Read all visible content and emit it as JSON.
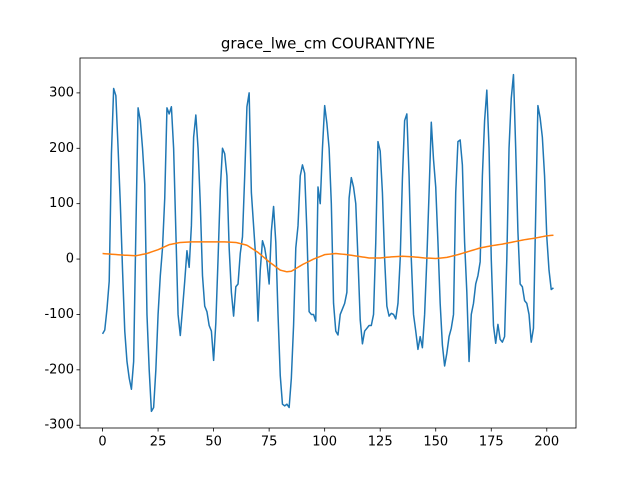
{
  "chart_data": {
    "type": "line",
    "title": "grace_lwe_cm COURANTYNE",
    "x": [
      0,
      1,
      2,
      3,
      4,
      5,
      6,
      7,
      8,
      9,
      10,
      11,
      12,
      13,
      14,
      15,
      16,
      17,
      18,
      19,
      20,
      21,
      22,
      23,
      24,
      25,
      26,
      27,
      28,
      29,
      30,
      31,
      32,
      33,
      34,
      35,
      36,
      37,
      38,
      39,
      40,
      41,
      42,
      43,
      44,
      45,
      46,
      47,
      48,
      49,
      50,
      51,
      52,
      53,
      54,
      55,
      56,
      57,
      58,
      59,
      60,
      61,
      62,
      63,
      64,
      65,
      66,
      67,
      68,
      69,
      70,
      71,
      72,
      73,
      74,
      75,
      76,
      77,
      78,
      79,
      80,
      81,
      82,
      83,
      84,
      85,
      86,
      87,
      88,
      89,
      90,
      91,
      92,
      93,
      94,
      95,
      96,
      97,
      98,
      99,
      100,
      101,
      102,
      103,
      104,
      105,
      106,
      107,
      108,
      109,
      110,
      111,
      112,
      113,
      114,
      115,
      116,
      117,
      118,
      119,
      120,
      121,
      122,
      123,
      124,
      125,
      126,
      127,
      128,
      129,
      130,
      131,
      132,
      133,
      134,
      135,
      136,
      137,
      138,
      139,
      140,
      141,
      142,
      143,
      144,
      145,
      146,
      147,
      148,
      149,
      150,
      151,
      152,
      153,
      154,
      155,
      156,
      157,
      158,
      159,
      160,
      161,
      162,
      163,
      164,
      165,
      166,
      167,
      168,
      169,
      170,
      171,
      172,
      173,
      174,
      175,
      176,
      177,
      178,
      179,
      180,
      181,
      182,
      183,
      184,
      185,
      186,
      187,
      188,
      189,
      190,
      191,
      192,
      193,
      194,
      195,
      196,
      197,
      198,
      199,
      200,
      201,
      202,
      203
    ],
    "series": [
      {
        "color": "#1f77b4",
        "values": [
          -135,
          -128,
          -90,
          -40,
          190,
          308,
          295,
          200,
          100,
          -20,
          -130,
          -185,
          -215,
          -235,
          -185,
          50,
          273,
          250,
          200,
          135,
          -100,
          -200,
          -275,
          -268,
          -200,
          -100,
          -30,
          20,
          110,
          273,
          262,
          275,
          200,
          50,
          -100,
          -138,
          -90,
          -40,
          15,
          -15,
          60,
          220,
          260,
          200,
          100,
          -30,
          -85,
          -95,
          -120,
          -130,
          -183,
          -115,
          0,
          125,
          200,
          190,
          150,
          20,
          -60,
          -103,
          -50,
          -45,
          10,
          40,
          150,
          275,
          300,
          120,
          60,
          0,
          -112,
          -20,
          33,
          20,
          -5,
          -45,
          50,
          95,
          30,
          -100,
          -210,
          -262,
          -265,
          -262,
          -268,
          -215,
          -120,
          20,
          60,
          150,
          170,
          155,
          50,
          -95,
          -100,
          -100,
          -112,
          130,
          100,
          200,
          277,
          245,
          200,
          100,
          -80,
          -130,
          -137,
          -100,
          -90,
          -80,
          -60,
          110,
          147,
          130,
          100,
          0,
          -110,
          -153,
          -130,
          -125,
          -120,
          -120,
          -100,
          30,
          212,
          195,
          120,
          0,
          -85,
          -103,
          -98,
          -100,
          -108,
          -80,
          0,
          145,
          250,
          262,
          150,
          0,
          -100,
          -130,
          -163,
          -140,
          -160,
          -100,
          0,
          120,
          247,
          180,
          130,
          30,
          -80,
          -155,
          -193,
          -170,
          -140,
          -125,
          -100,
          120,
          212,
          215,
          170,
          30,
          -60,
          -185,
          -100,
          -80,
          -45,
          -30,
          -5,
          150,
          250,
          305,
          200,
          0,
          -120,
          -152,
          -118,
          -145,
          -150,
          -140,
          0,
          200,
          290,
          333,
          200,
          50,
          -45,
          -50,
          -75,
          -80,
          -100,
          -150,
          -125,
          80,
          277,
          255,
          220,
          150,
          40,
          -20,
          -55,
          -52
        ]
      },
      {
        "color": "#ff7f0e",
        "values": [
          10,
          9.7,
          9.4,
          9.1,
          8.8,
          8.5,
          8.2,
          7.9,
          7.6,
          7.3,
          7,
          6.8,
          6.6,
          6.4,
          6.2,
          6,
          6.8,
          7.6,
          8.4,
          9.2,
          10,
          11.4,
          12.8,
          14.2,
          15.6,
          17,
          18.8,
          20.6,
          22.4,
          24.2,
          26,
          26.8,
          27.6,
          28.4,
          29.2,
          30,
          30.2,
          30.4,
          30.6,
          30.8,
          31,
          31,
          31,
          31,
          31,
          31,
          31,
          31,
          31,
          31,
          31,
          31,
          31,
          31,
          31,
          31,
          30.8,
          30.6,
          30.4,
          30.2,
          30,
          29,
          28,
          27,
          26,
          25,
          22.4,
          19.8,
          17.2,
          14.6,
          12,
          8.6,
          5.2,
          1.8,
          -1.6,
          -5,
          -8,
          -11,
          -14,
          -17,
          -20,
          -21,
          -22,
          -23,
          -22.5,
          -22,
          -19.6,
          -17.2,
          -14.8,
          -12.4,
          -10,
          -8,
          -6,
          -4,
          -2,
          0,
          1.6,
          3.2,
          4.8,
          6.4,
          8,
          8.4,
          8.8,
          9.2,
          9.6,
          10,
          9.6,
          9.2,
          8.8,
          8.4,
          8,
          7.4,
          6.8,
          6.2,
          5.6,
          5,
          4.4,
          3.8,
          3.2,
          2.6,
          2,
          2,
          2,
          2,
          2,
          2,
          2.4,
          2.8,
          3.2,
          3.6,
          4,
          4.2,
          4.4,
          4.6,
          4.8,
          5,
          4.8,
          4.6,
          4.4,
          4.2,
          4,
          3.6,
          3.2,
          2.8,
          2.4,
          2,
          1.8,
          1.6,
          1.4,
          1.2,
          1,
          1.4,
          1.8,
          2.2,
          2.6,
          3,
          4,
          5,
          6,
          7,
          8,
          9.2,
          10.4,
          11.6,
          12.8,
          14,
          15.2,
          16.4,
          17.6,
          18.8,
          20,
          20.8,
          21.6,
          22.4,
          23.2,
          24,
          24.6,
          25.2,
          25.8,
          26.4,
          27,
          27.8,
          28.6,
          29.4,
          30.2,
          31,
          31.8,
          32.6,
          33.4,
          34.2,
          35,
          35.6,
          36.2,
          36.8,
          37.4,
          38,
          38.8,
          39.6,
          40.4,
          41.2,
          42,
          42.3,
          42.7,
          43
        ]
      }
    ],
    "xlim": [
      -10.15,
      213.15
    ],
    "xticks": [
      0,
      25,
      50,
      75,
      100,
      125,
      150,
      175,
      200
    ],
    "ylim": [
      -305,
      363
    ],
    "yticks": [
      -300,
      -200,
      -100,
      0,
      100,
      200,
      300
    ]
  }
}
